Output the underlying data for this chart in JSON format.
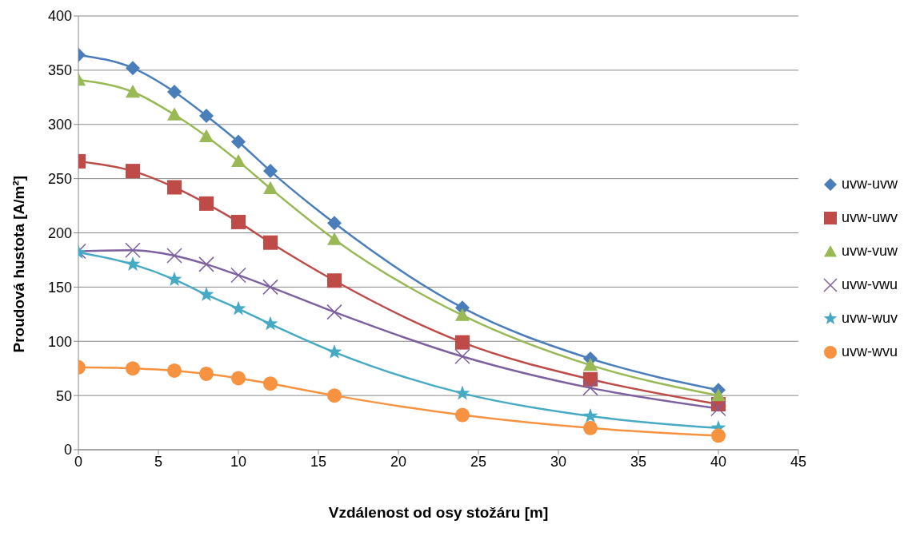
{
  "chart_data": {
    "type": "line",
    "xlabel": "Vzdálenost od osy stožáru [m]",
    "ylabel": "Proudová hustota [A/m²]",
    "x": [
      0,
      3.4,
      6,
      8,
      10,
      12,
      16,
      24,
      32,
      40
    ],
    "xlim": [
      0,
      45
    ],
    "xticks": [
      0,
      5,
      10,
      15,
      20,
      25,
      30,
      35,
      40,
      45
    ],
    "ylim": [
      0,
      400
    ],
    "yticks": [
      0,
      50,
      100,
      150,
      200,
      250,
      300,
      350,
      400
    ],
    "grid": "y",
    "legend": "right",
    "line_style": "solid",
    "series": [
      {
        "name": "uvw-uvw",
        "color": "#4a7ebb",
        "marker": "diamond",
        "values": [
          364,
          352,
          330,
          308,
          284,
          257,
          209,
          131,
          84,
          55
        ]
      },
      {
        "name": "uvw-uwv",
        "color": "#be4b48",
        "marker": "square",
        "values": [
          266,
          257,
          242,
          227,
          210,
          191,
          156,
          99,
          65,
          42
        ]
      },
      {
        "name": "uvw-vuw",
        "color": "#98b954",
        "marker": "triangle",
        "values": [
          341,
          330,
          309,
          289,
          266,
          241,
          194,
          124,
          78,
          50
        ]
      },
      {
        "name": "uvw-vwu",
        "color": "#7d60a0",
        "marker": "cross",
        "values": [
          183,
          184,
          179,
          171,
          161,
          150,
          127,
          86,
          57,
          38
        ]
      },
      {
        "name": "uvw-wuv",
        "color": "#46aac5",
        "marker": "star",
        "values": [
          182,
          171,
          157,
          143,
          130,
          116,
          90,
          52,
          31,
          20
        ]
      },
      {
        "name": "uvw-wvu",
        "color": "#f69240",
        "marker": "circle",
        "values": [
          76,
          75,
          73,
          70,
          66,
          61,
          50,
          32,
          20,
          13
        ]
      }
    ]
  }
}
